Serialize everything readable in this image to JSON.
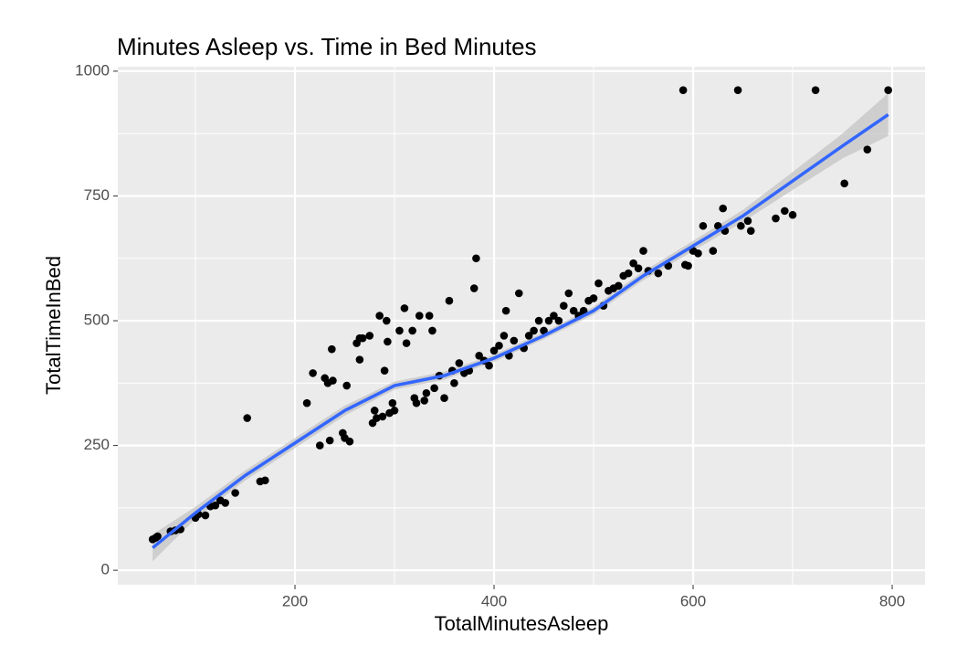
{
  "chart_data": {
    "type": "scatter",
    "title": "Minutes Asleep vs. Time in Bed Minutes",
    "x_label": "TotalMinutesAsleep",
    "y_label": "TotalTimeInBed",
    "xlim": [
      22,
      833
    ],
    "ylim": [
      -29,
      1009
    ],
    "xticks": [
      200,
      400,
      600,
      800
    ],
    "yticks": [
      0,
      250,
      500,
      750,
      1000
    ],
    "x_minor": [
      100,
      300,
      500,
      700
    ],
    "y_minor": [
      125,
      375,
      625,
      875
    ],
    "grid": true,
    "panel_color": "#ebebeb",
    "series": [
      {
        "color": "#000000",
        "x": [
          57,
          60,
          62,
          75,
          80,
          85,
          100,
          103,
          110,
          115,
          120,
          125,
          130,
          140,
          152,
          165,
          170,
          212,
          218,
          225,
          230,
          233,
          235,
          237,
          238,
          248,
          250,
          252,
          255,
          262,
          265,
          265,
          268,
          275,
          278,
          280,
          282,
          285,
          288,
          290,
          292,
          293,
          295,
          298,
          300,
          305,
          310,
          312,
          318,
          320,
          322,
          325,
          330,
          332,
          335,
          338,
          340,
          345,
          350,
          355,
          358,
          360,
          365,
          370,
          375,
          380,
          382,
          385,
          390,
          395,
          400,
          405,
          410,
          412,
          415,
          420,
          425,
          430,
          435,
          440,
          445,
          450,
          455,
          460,
          465,
          470,
          475,
          480,
          485,
          490,
          495,
          500,
          505,
          510,
          515,
          520,
          525,
          530,
          535,
          540,
          545,
          550,
          555,
          565,
          575,
          590,
          592,
          595,
          600,
          605,
          610,
          620,
          625,
          630,
          632,
          645,
          648,
          655,
          658,
          683,
          692,
          700,
          723,
          752,
          775,
          796
        ],
        "values": [
          62,
          65,
          68,
          78,
          80,
          82,
          105,
          112,
          110,
          128,
          130,
          140,
          135,
          155,
          305,
          178,
          180,
          335,
          395,
          250,
          385,
          375,
          260,
          443,
          380,
          275,
          265,
          370,
          258,
          455,
          465,
          422,
          465,
          470,
          295,
          320,
          305,
          510,
          308,
          400,
          500,
          458,
          315,
          335,
          320,
          480,
          525,
          455,
          480,
          345,
          335,
          510,
          340,
          355,
          510,
          480,
          365,
          390,
          345,
          540,
          400,
          375,
          415,
          395,
          400,
          565,
          625,
          430,
          420,
          410,
          440,
          450,
          470,
          520,
          430,
          460,
          555,
          445,
          470,
          480,
          500,
          480,
          500,
          510,
          500,
          530,
          555,
          520,
          510,
          520,
          540,
          545,
          575,
          530,
          560,
          565,
          570,
          590,
          595,
          615,
          605,
          640,
          600,
          595,
          610,
          962,
          612,
          610,
          640,
          635,
          690,
          640,
          690,
          725,
          680,
          962,
          690,
          700,
          680,
          705,
          720,
          712,
          962,
          775,
          843,
          962
        ]
      },
      {
        "color": "#3366ff",
        "band_color": "#c4c4c4",
        "x": [
          57,
          100,
          150,
          200,
          250,
          300,
          350,
          400,
          450,
          500,
          550,
          600,
          650,
          700,
          750,
          796
        ],
        "values": [
          45,
          115,
          190,
          255,
          320,
          370,
          390,
          425,
          470,
          520,
          590,
          650,
          710,
          780,
          850,
          913
        ],
        "lower": [
          18,
          103,
          180,
          245,
          310,
          362,
          382,
          418,
          463,
          512,
          581,
          640,
          698,
          762,
          825,
          870
        ],
        "upper": [
          72,
          127,
          200,
          265,
          330,
          378,
          398,
          432,
          477,
          528,
          599,
          660,
          722,
          798,
          875,
          956
        ]
      }
    ]
  }
}
